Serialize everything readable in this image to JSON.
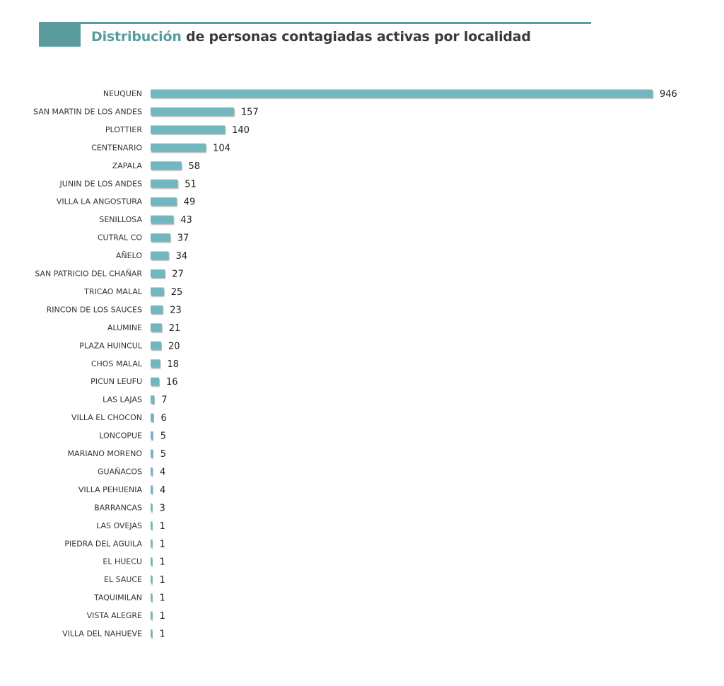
{
  "header": {
    "title_accent": "Distribución",
    "title_rest": " de personas contagiadas activas por localidad",
    "accent_color": "#5a9c9d"
  },
  "chart_data": {
    "type": "bar",
    "orientation": "horizontal",
    "title": "Distribución de personas contagiadas activas por localidad",
    "bar_color": "#72b7c0",
    "categories": [
      "NEUQUEN",
      "SAN MARTIN DE LOS ANDES",
      "PLOTTIER",
      "CENTENARIO",
      "ZAPALA",
      "JUNIN DE LOS ANDES",
      "VILLA LA ANGOSTURA",
      "SENILLOSA",
      "CUTRAL CO",
      "AÑELO",
      "SAN PATRICIO DEL CHAÑAR",
      "TRICAO MALAL",
      "RINCON DE LOS SAUCES",
      "ALUMINE",
      "PLAZA HUINCUL",
      "CHOS MALAL",
      "PICUN LEUFU",
      "LAS LAJAS",
      "VILLA EL CHOCON",
      "LONCOPUE",
      "MARIANO MORENO",
      "GUAÑACOS",
      "VILLA PEHUENIA",
      "BARRANCAS",
      "LAS OVEJAS",
      "PIEDRA DEL AGUILA",
      "EL HUECU",
      "EL SAUCE",
      "TAQUIMILAN",
      "VISTA ALEGRE",
      "VILLA DEL NAHUEVE"
    ],
    "values": [
      946,
      157,
      140,
      104,
      58,
      51,
      49,
      43,
      37,
      34,
      27,
      25,
      23,
      21,
      20,
      18,
      16,
      7,
      6,
      5,
      5,
      4,
      4,
      3,
      1,
      1,
      1,
      1,
      1,
      1,
      1
    ],
    "xlim": [
      0,
      946
    ],
    "data_labels": true,
    "grid": false,
    "legend": "none"
  }
}
